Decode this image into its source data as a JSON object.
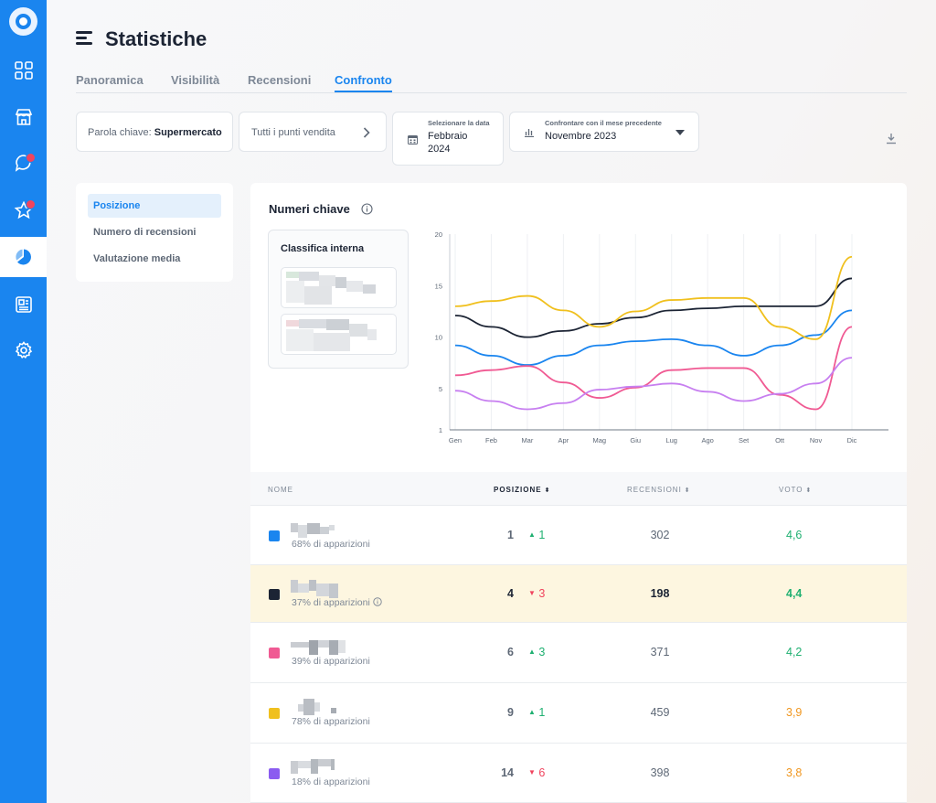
{
  "app": {
    "title": "Statistiche"
  },
  "colors": {
    "accent": "#1a85ef",
    "green": "#1fb071",
    "red": "#f0445e",
    "orange": "#f0961e"
  },
  "sidebar": {
    "items": [
      {
        "icon": "dashboard-icon"
      },
      {
        "icon": "store-icon"
      },
      {
        "icon": "chat-icon",
        "badge": true
      },
      {
        "icon": "star-icon",
        "badge": true
      },
      {
        "icon": "statistics-icon",
        "active": true
      },
      {
        "icon": "newspaper-icon"
      },
      {
        "icon": "gear-icon"
      }
    ]
  },
  "tabs": [
    {
      "label": "Panoramica"
    },
    {
      "label": "Visibilità"
    },
    {
      "label": "Recensioni"
    },
    {
      "label": "Confronto",
      "active": true
    }
  ],
  "filters": {
    "keyword_label": "Parola chiave:",
    "keyword_value": "Supermercato",
    "stores": "Tutti i punti vendita",
    "date_label": "Selezionare la data",
    "date_value_1": "Febbraio",
    "date_value_2": "2024",
    "compare_label": "Confrontare con il mese precedente",
    "compare_value": "Novembre 2023"
  },
  "left_menu": [
    {
      "label": "Posizione",
      "active": true
    },
    {
      "label": "Numero di recensioni"
    },
    {
      "label": "Valutazione media"
    }
  ],
  "card": {
    "title": "Numeri chiave",
    "rank_title": "Classifica interna"
  },
  "chart_data": {
    "type": "line",
    "categories": [
      "Gen",
      "Feb",
      "Mar",
      "Apr",
      "Mag",
      "Giu",
      "Lug",
      "Ago",
      "Set",
      "Ott",
      "Nov",
      "Dic"
    ],
    "yticks": [
      20,
      15,
      10,
      5,
      1
    ],
    "ylim": [
      1,
      20
    ],
    "series": [
      {
        "color": "#1a85ef",
        "values": [
          9.2,
          8.2,
          7.3,
          8.2,
          9.2,
          9.6,
          9.8,
          9.2,
          8.2,
          9.2,
          10.2,
          12.6
        ]
      },
      {
        "color": "#1c2434",
        "values": [
          12.1,
          11.0,
          10.0,
          10.6,
          11.3,
          11.9,
          12.6,
          12.8,
          13.0,
          13.0,
          13.0,
          15.7
        ]
      },
      {
        "color": "#f0c01e",
        "values": [
          13.0,
          13.5,
          14.0,
          12.6,
          11.0,
          12.5,
          13.6,
          13.8,
          13.8,
          11.0,
          9.8,
          17.8
        ]
      },
      {
        "color": "#f05a93",
        "values": [
          6.3,
          6.8,
          7.2,
          5.6,
          4.1,
          5.1,
          6.8,
          7.0,
          7.0,
          4.4,
          3.0,
          11.0
        ]
      },
      {
        "color": "#c77ff0",
        "values": [
          4.8,
          3.8,
          3.0,
          3.6,
          4.9,
          5.2,
          5.5,
          4.7,
          3.8,
          4.5,
          5.5,
          8.0
        ]
      }
    ]
  },
  "table": {
    "headers": {
      "name": "NOME",
      "position": "POSIZIONE",
      "reviews": "RECENSIONI",
      "score": "VOTO"
    },
    "rows": [
      {
        "color": "#1a85ef",
        "appear": "68% di apparizioni",
        "position": "1",
        "delta": "1",
        "dir": "up",
        "reviews": "302",
        "score": "4,6",
        "score_color": "#1fb071"
      },
      {
        "color": "#1c2434",
        "appear": "37% di apparizioni",
        "position": "4",
        "delta": "3",
        "dir": "down",
        "reviews": "198",
        "score": "4,4",
        "score_color": "#1fb071",
        "highlight": true,
        "info": true
      },
      {
        "color": "#f05a93",
        "appear": "39% di apparizioni",
        "position": "6",
        "delta": "3",
        "dir": "up",
        "reviews": "371",
        "score": "4,2",
        "score_color": "#1fb071"
      },
      {
        "color": "#f0c01e",
        "appear": "78% di apparizioni",
        "position": "9",
        "delta": "1",
        "dir": "up",
        "reviews": "459",
        "score": "3,9",
        "score_color": "#f0961e"
      },
      {
        "color": "#8b5cf0",
        "appear": "18% di apparizioni",
        "position": "14",
        "delta": "6",
        "dir": "down",
        "reviews": "398",
        "score": "3,8",
        "score_color": "#f0961e"
      }
    ]
  }
}
